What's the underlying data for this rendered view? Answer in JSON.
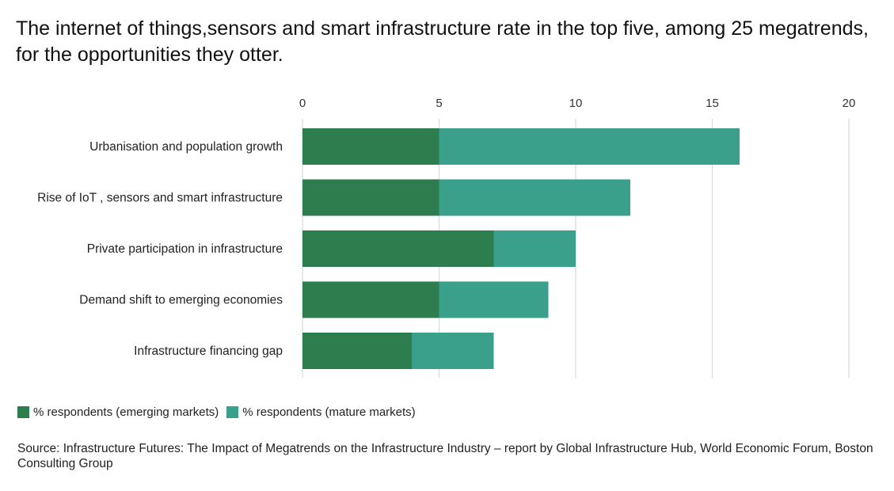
{
  "chart_data": {
    "type": "bar",
    "orientation": "horizontal",
    "stacked": true,
    "title": "The internet of things,sensors and smart infrastructure rate in the top five, among 25 megatrends, for the opportunities they otter.",
    "categories": [
      "Urbanisation and population growth",
      "Rise of IoT , sensors and smart infrastructure",
      "Private participation  in infrastructure",
      "Demand shift to emerging economies",
      "Infrastructure financing gap"
    ],
    "series": [
      {
        "name": "% respondents (emerging markets)",
        "values": [
          5,
          5,
          7,
          5,
          4
        ],
        "color": "#2e7d4f"
      },
      {
        "name": "% respondents (mature markets)",
        "values": [
          11,
          7,
          3,
          4,
          3
        ],
        "color": "#3aa08c"
      }
    ],
    "xlim": [
      0,
      20
    ],
    "xticks": [
      "0",
      "5",
      "10",
      "15",
      "20"
    ],
    "grid": true,
    "legend_position": "bottom-left",
    "source": "Source:  Infrastructure Futures: The Impact of Megatrends on the Infrastructure Industry – report by Global Infrastructure Hub, World Economic Forum, Boston Consulting Group"
  }
}
